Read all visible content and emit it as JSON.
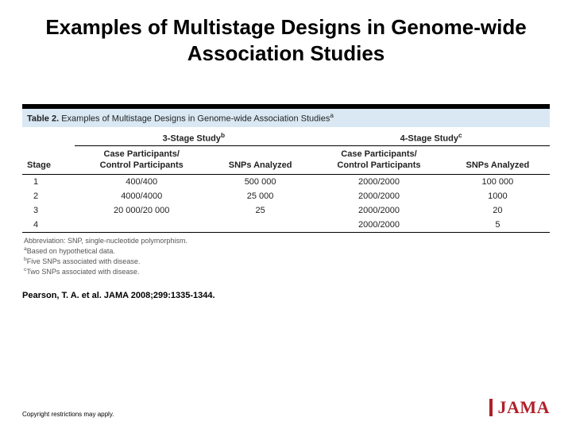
{
  "slide": {
    "title": "Examples of Multistage Designs in Genome-wide Association Studies"
  },
  "table": {
    "caption_label": "Table 2.",
    "caption_text": " Examples of Multistage Designs in Genome-wide Association Studies",
    "caption_sup": "a",
    "group_headers": {
      "stage": "Stage",
      "g3": "3-Stage Study",
      "g3_sup": "b",
      "g4": "4-Stage Study",
      "g4_sup": "c"
    },
    "sub_headers": {
      "case_ctrl": "Case Participants/\nControl Participants",
      "snps": "SNPs Analyzed"
    },
    "rows": [
      {
        "stage": "1",
        "cc3": "400/400",
        "snp3": "500 000",
        "cc4": "2000/2000",
        "snp4": "100 000"
      },
      {
        "stage": "2",
        "cc3": "4000/4000",
        "snp3": "25 000",
        "cc4": "2000/2000",
        "snp4": "1000"
      },
      {
        "stage": "3",
        "cc3": "20 000/20 000",
        "snp3": "25",
        "cc4": "2000/2000",
        "snp4": "20"
      },
      {
        "stage": "4",
        "cc3": "",
        "snp3": "",
        "cc4": "2000/2000",
        "snp4": "5"
      }
    ],
    "footnotes": {
      "abbrev": "Abbreviation: SNP, single-nucleotide polymorphism.",
      "a": "Based on hypothetical data.",
      "b": "Five SNPs associated with disease.",
      "c": "Two SNPs associated with disease."
    }
  },
  "citation": "Pearson, T. A. et al. JAMA 2008;299:1335-1344.",
  "footer": {
    "copyright": "Copyright restrictions may apply.",
    "logo": "JAMA"
  },
  "colors": {
    "caption_bg": "#d9e8f3",
    "logo": "#b0202a",
    "text": "#000000",
    "muted": "#555555"
  }
}
